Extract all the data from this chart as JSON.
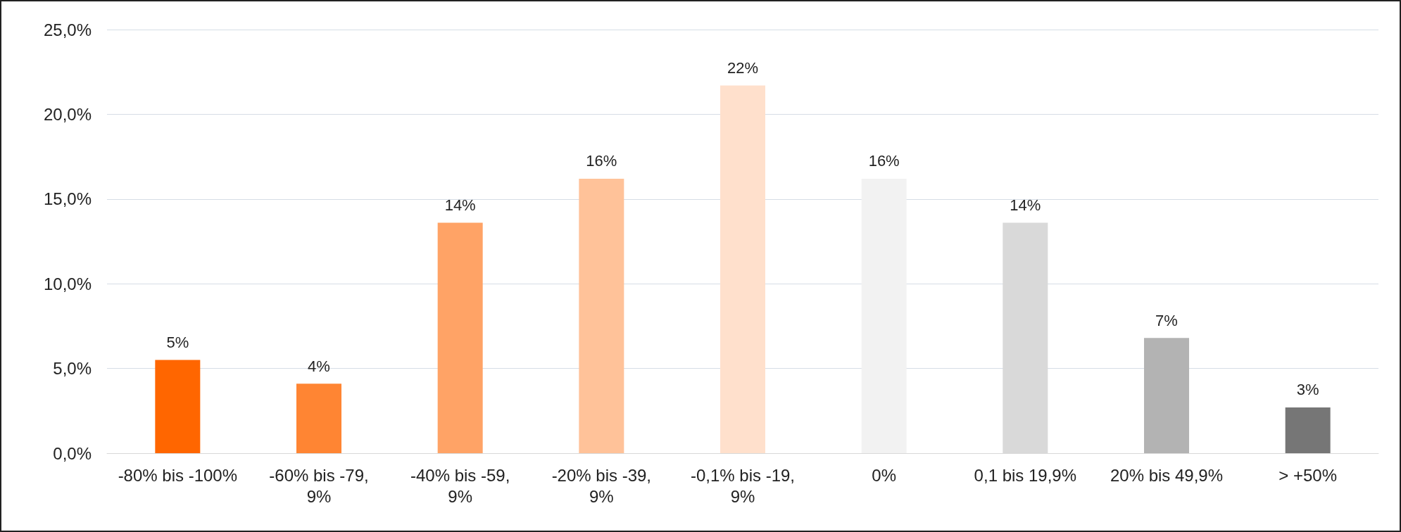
{
  "chart_data": {
    "type": "bar",
    "categories": [
      "-80% bis -100%",
      "-60% bis -79,9%",
      "-40% bis -59,9%",
      "-20% bis -39,9%",
      "-0,1% bis -19,9%",
      "0%",
      "0,1 bis 19,9%",
      "20% bis 49,9%",
      "> +50%"
    ],
    "values": [
      5.5,
      4.1,
      13.6,
      16.2,
      21.7,
      16.2,
      13.6,
      6.8,
      2.7
    ],
    "colors": [
      "#ff6600",
      "#ff8533",
      "#ffa366",
      "#ffc299",
      "#ffe0cc",
      "#f2f2f2",
      "#d9d9d9",
      "#b3b3b3",
      "#767676"
    ],
    "value_labels": [
      "5%",
      "4%",
      "14%",
      "16%",
      "22%",
      "16%",
      "14%",
      "7%",
      "3%"
    ],
    "ylim": [
      0,
      25
    ],
    "yticks": [
      {
        "value": 0,
        "label": "0,0%"
      },
      {
        "value": 5,
        "label": "5,0%"
      },
      {
        "value": 10,
        "label": "10,0%"
      },
      {
        "value": 15,
        "label": "15,0%"
      },
      {
        "value": 20,
        "label": "20,0%"
      },
      {
        "value": 25,
        "label": "25,0%"
      }
    ],
    "grid": "y"
  }
}
